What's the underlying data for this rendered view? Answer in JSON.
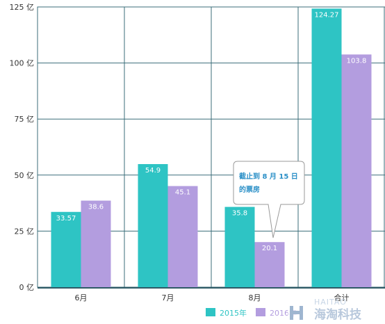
{
  "chart_data": {
    "type": "bar",
    "categories": [
      "6月",
      "7月",
      "8月",
      "合计"
    ],
    "series": [
      {
        "name": "2015年",
        "color": "#2ec4c4",
        "values": [
          33.57,
          54.9,
          35.8,
          124.27
        ]
      },
      {
        "name": "2016年",
        "color": "#b39ddf",
        "values": [
          38.6,
          45.1,
          20.1,
          103.8
        ]
      }
    ],
    "ylim": [
      0,
      125
    ],
    "yticks": [
      0,
      25,
      50,
      75,
      100,
      125
    ],
    "ytick_labels": [
      "0 亿",
      "25 亿",
      "50 亿",
      "75 亿",
      "100 亿",
      "125 亿"
    ],
    "grid": true,
    "legend_position": "bottom-right",
    "annotation": {
      "line1": "截止到 8 月 15 日",
      "line2": "的票房"
    }
  },
  "watermark": {
    "latin": "HAITAO",
    "cjk": "海淘科技",
    "color": "#8aa8c8"
  }
}
